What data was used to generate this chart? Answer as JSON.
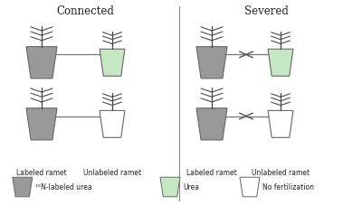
{
  "background_color": "#ffffff",
  "title_connected": "Connected",
  "title_severed": "Severed",
  "color_gray": "#999999",
  "color_green": "#c5e8c3",
  "color_white": "#ffffff",
  "color_outline": "#666666",
  "color_line": "#777777",
  "color_plant": "#444444",
  "label_labeled": "Labeled ramet",
  "label_unlabeled": "Unlabeled ramet",
  "legend_gray": "¹⁵N-labeled urea",
  "legend_green": "Urea",
  "legend_white": "No fertilization",
  "divider_color": "#888888",
  "text_color": "#222222",
  "fig_w": 4.0,
  "fig_h": 2.27,
  "dpi": 100
}
